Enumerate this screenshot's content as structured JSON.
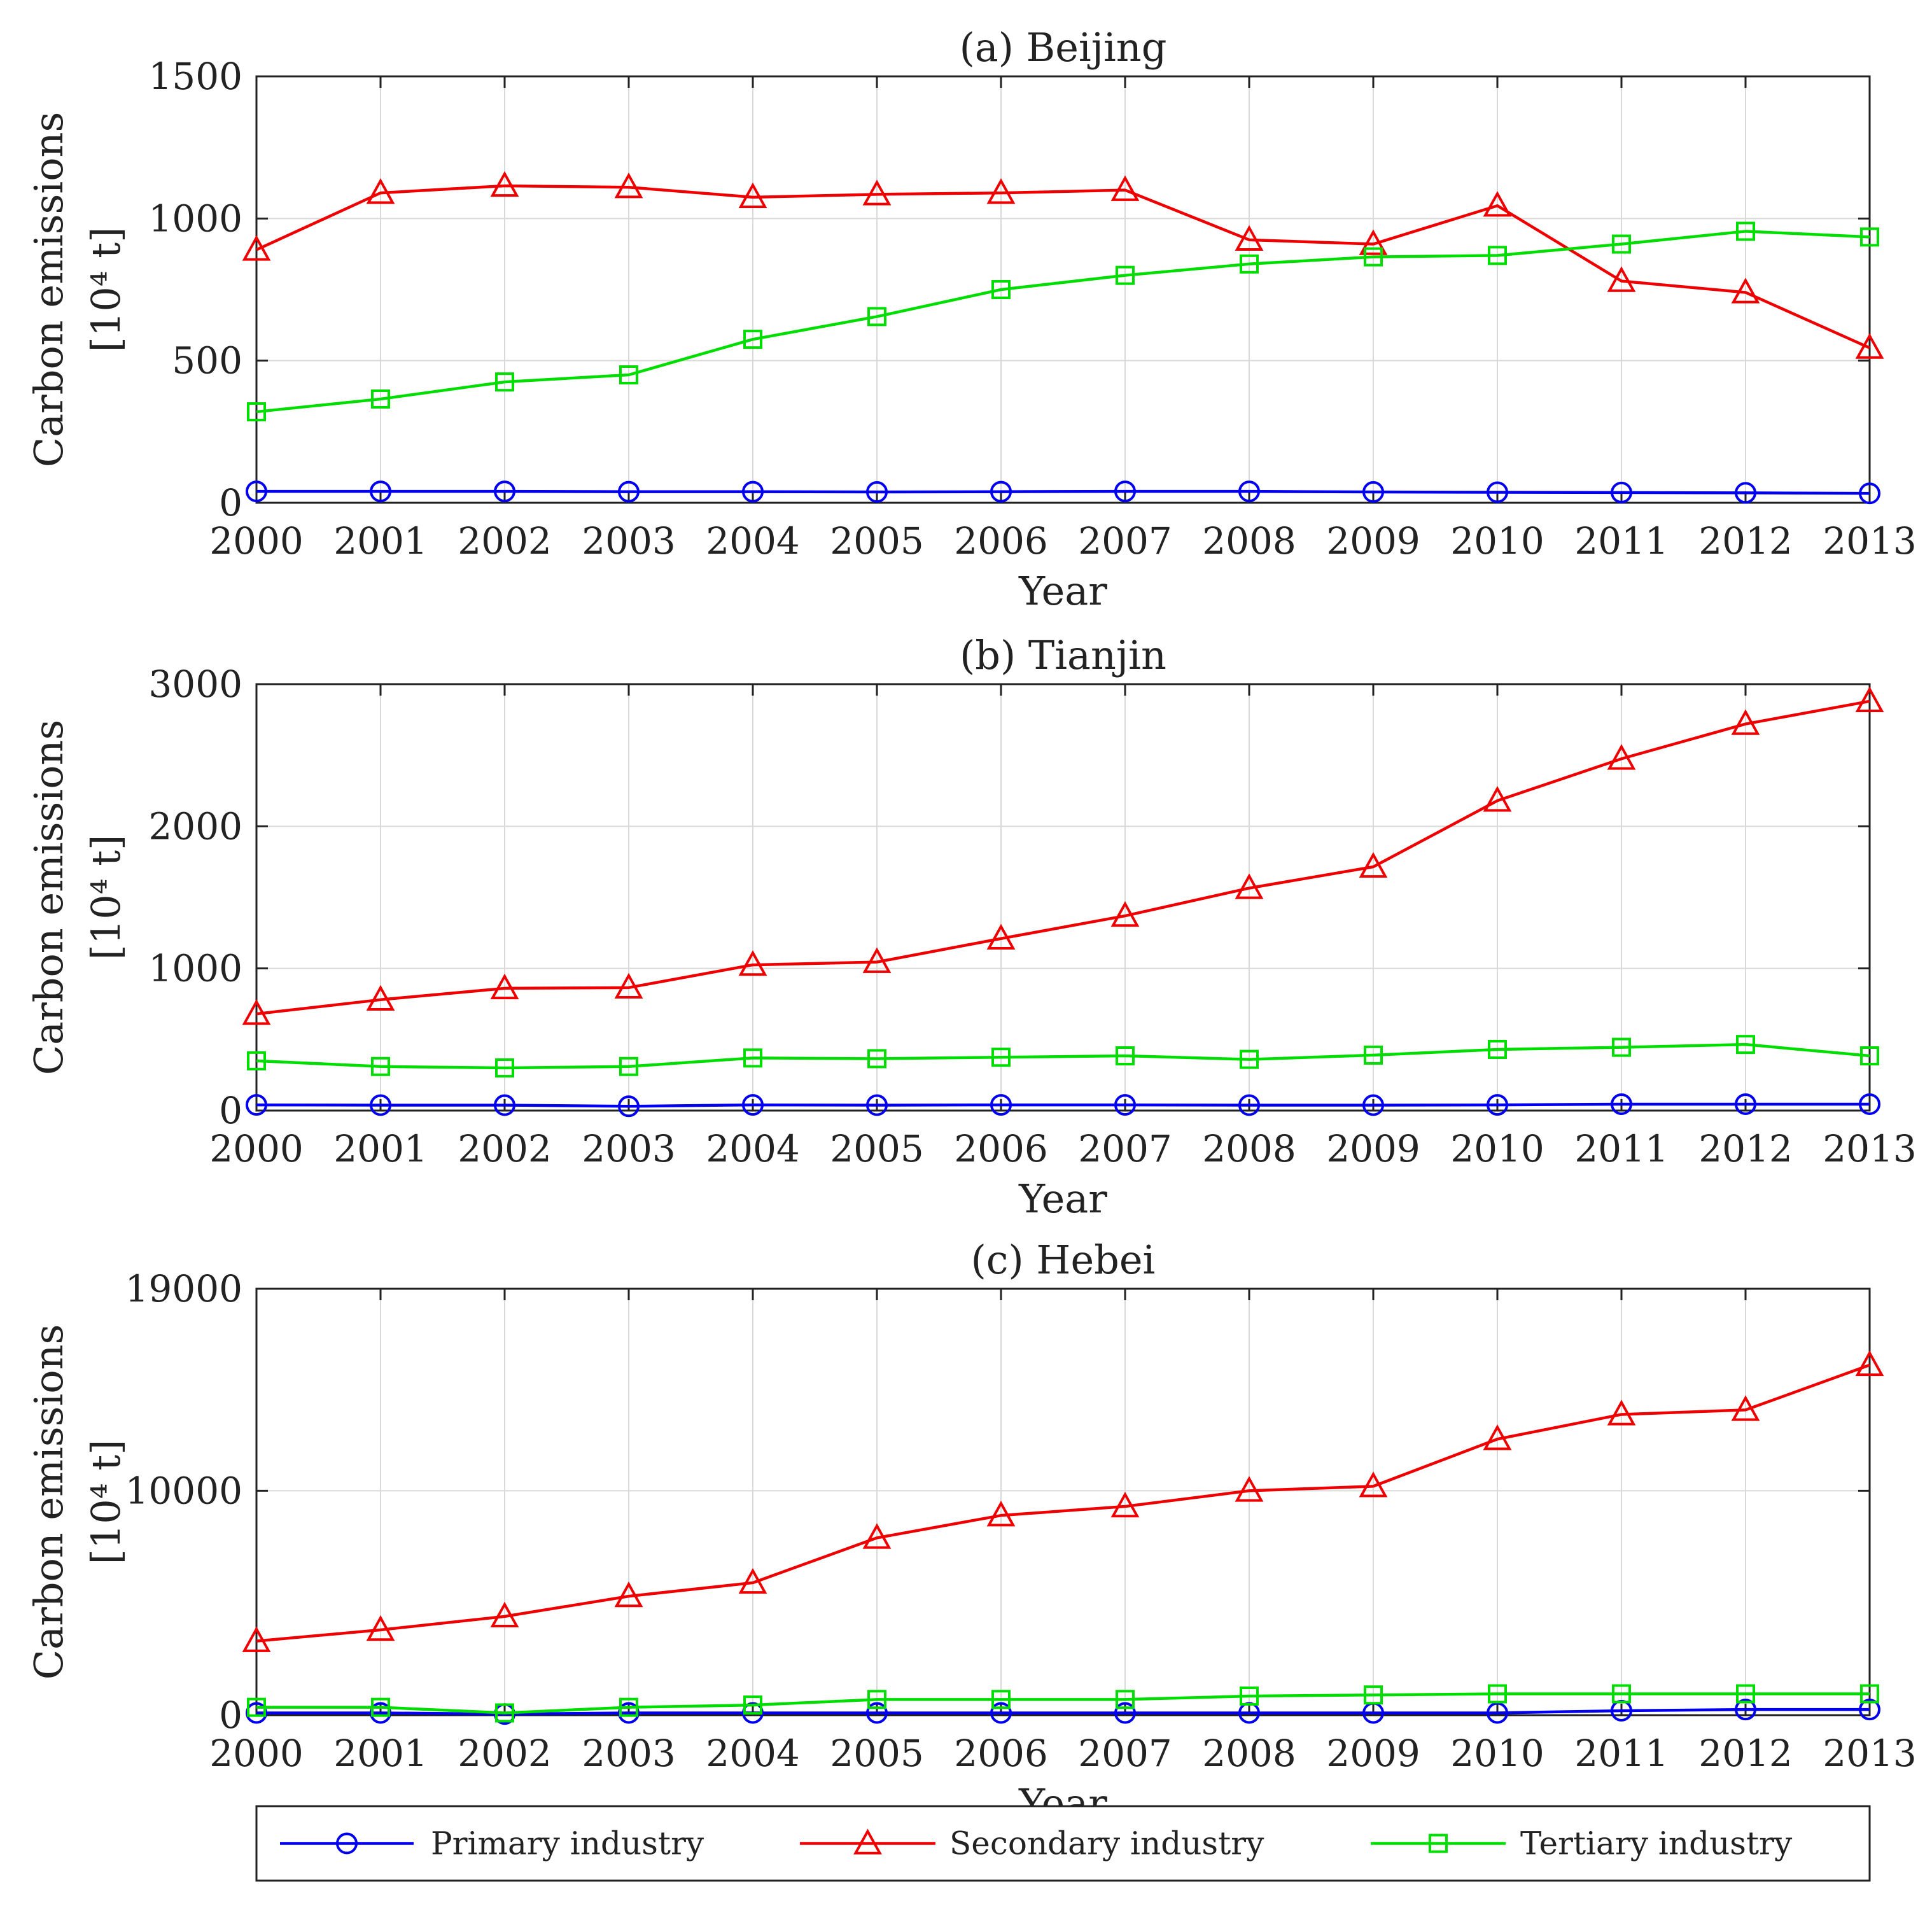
{
  "chart_data": [
    {
      "type": "line",
      "title": "(a) Beijing",
      "xlabel": "Year",
      "ylabel_line1": "Carbon emissions",
      "ylabel_line2": "[10⁴ t]",
      "categories": [
        "2000",
        "2001",
        "2002",
        "2003",
        "2004",
        "2005",
        "2006",
        "2007",
        "2008",
        "2009",
        "2010",
        "2011",
        "2012",
        "2013"
      ],
      "ylim": [
        0,
        1500
      ],
      "yticks": [
        0,
        500,
        1000,
        1500
      ],
      "ytick_labels": [
        "0",
        "500",
        "1000",
        "1500"
      ],
      "grid": true,
      "series": [
        {
          "name": "Primary industry",
          "values": [
            40,
            40,
            40,
            39,
            39,
            38,
            39,
            40,
            40,
            38,
            37,
            36,
            35,
            33
          ]
        },
        {
          "name": "Secondary industry",
          "values": [
            890,
            1090,
            1115,
            1110,
            1075,
            1085,
            1090,
            1100,
            925,
            910,
            1045,
            780,
            740,
            545
          ]
        },
        {
          "name": "Tertiary industry",
          "values": [
            320,
            365,
            425,
            450,
            575,
            655,
            750,
            800,
            840,
            865,
            870,
            910,
            955,
            935
          ]
        }
      ]
    },
    {
      "type": "line",
      "title": "(b) Tianjin",
      "xlabel": "Year",
      "ylabel_line1": "Carbon emissions",
      "ylabel_line2": "[10⁴ t]",
      "categories": [
        "2000",
        "2001",
        "2002",
        "2003",
        "2004",
        "2005",
        "2006",
        "2007",
        "2008",
        "2009",
        "2010",
        "2011",
        "2012",
        "2013"
      ],
      "ylim": [
        0,
        3000
      ],
      "yticks": [
        0,
        1000,
        2000,
        3000
      ],
      "ytick_labels": [
        "0",
        "1000",
        "2000",
        "3000"
      ],
      "grid": true,
      "series": [
        {
          "name": "Primary industry",
          "values": [
            40,
            38,
            38,
            30,
            40,
            38,
            40,
            40,
            38,
            38,
            40,
            45,
            45,
            45
          ]
        },
        {
          "name": "Secondary industry",
          "values": [
            680,
            780,
            860,
            865,
            1025,
            1045,
            1210,
            1370,
            1565,
            1715,
            2180,
            2475,
            2720,
            2880
          ]
        },
        {
          "name": "Tertiary industry",
          "values": [
            350,
            310,
            300,
            310,
            370,
            365,
            375,
            385,
            360,
            390,
            430,
            445,
            465,
            385
          ]
        }
      ]
    },
    {
      "type": "line",
      "title": "(c) Hebei",
      "xlabel": "Year",
      "ylabel_line1": "Carbon emissions",
      "ylabel_line2": "[10⁴ t]",
      "categories": [
        "2000",
        "2001",
        "2002",
        "2003",
        "2004",
        "2005",
        "2006",
        "2007",
        "2008",
        "2009",
        "2010",
        "2011",
        "2012",
        "2013"
      ],
      "ylim": [
        0,
        19000
      ],
      "yticks": [
        0,
        10000,
        19000
      ],
      "ytick_labels": [
        "0",
        "10000",
        "19000"
      ],
      "grid": true,
      "series": [
        {
          "name": "Primary industry",
          "values": [
            100,
            100,
            50,
            100,
            100,
            100,
            100,
            100,
            100,
            100,
            100,
            200,
            250,
            250
          ]
        },
        {
          "name": "Secondary industry",
          "values": [
            3300,
            3800,
            4400,
            5300,
            5900,
            7900,
            8900,
            9300,
            10000,
            10200,
            12300,
            13400,
            13600,
            15600
          ]
        },
        {
          "name": "Tertiary industry",
          "values": [
            350,
            350,
            100,
            350,
            450,
            700,
            700,
            700,
            850,
            900,
            950,
            950,
            950,
            950
          ]
        }
      ]
    }
  ],
  "legend": {
    "position": "bottom",
    "items": [
      {
        "label": "Primary industry",
        "color": "#0000ee",
        "marker": "circle"
      },
      {
        "label": "Secondary industry",
        "color": "#ee0000",
        "marker": "triangle"
      },
      {
        "label": "Tertiary industry",
        "color": "#00dd00",
        "marker": "square"
      }
    ]
  }
}
